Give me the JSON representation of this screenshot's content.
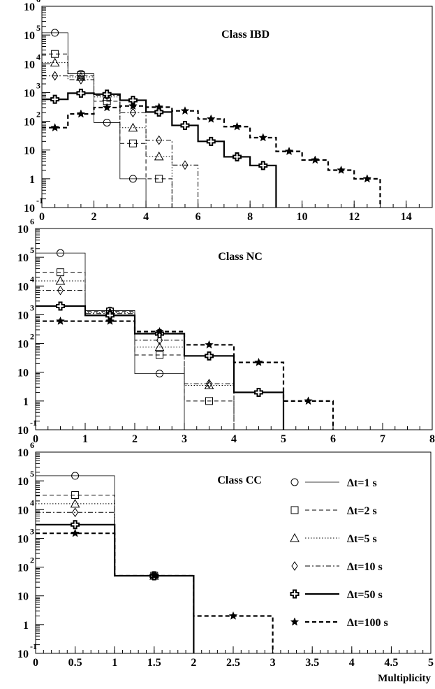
{
  "chart_data": [
    {
      "type": "histogram",
      "title": "Class IBD",
      "xlim": [
        0,
        15
      ],
      "ylim": [
        0.1,
        1000000
      ],
      "yscale": "log",
      "xticks": [
        "0",
        "2",
        "4",
        "6",
        "8",
        "10",
        "12",
        "14"
      ],
      "yticks": [
        {
          "base": "10",
          "exp": "-1"
        },
        {
          "base": "1",
          "exp": ""
        },
        {
          "base": "10",
          "exp": ""
        },
        {
          "base": "10",
          "exp": "2"
        },
        {
          "base": "10",
          "exp": "3"
        },
        {
          "base": "10",
          "exp": "4"
        },
        {
          "base": "10",
          "exp": "5"
        },
        {
          "base": "10",
          "exp": "6"
        }
      ],
      "series": [
        {
          "name": "Δt=1 s",
          "bin_width": 1,
          "values": [
            120000,
            4500,
            90,
            1
          ]
        },
        {
          "name": "Δt=2 s",
          "bin_width": 1,
          "values": [
            22000,
            4000,
            500,
            17,
            1
          ]
        },
        {
          "name": "Δt=5 s",
          "bin_width": 1,
          "values": [
            11000,
            3500,
            700,
            60,
            6
          ]
        },
        {
          "name": "Δt=10 s",
          "bin_width": 1,
          "values": [
            3800,
            2800,
            800,
            200,
            22,
            3
          ]
        },
        {
          "name": "Δt=50 s",
          "bin_width": 1,
          "values": [
            580,
            950,
            880,
            540,
            210,
            72,
            20,
            5.8,
            2.9
          ]
        },
        {
          "name": "Δt=100 s",
          "bin_width": 1,
          "values": [
            60,
            180,
            300,
            340,
            310,
            230,
            120,
            65,
            27,
            9,
            4.5,
            2,
            1
          ]
        }
      ]
    },
    {
      "type": "histogram",
      "title": "Class NC",
      "xlim": [
        0,
        8
      ],
      "ylim": [
        0.1,
        1000000
      ],
      "yscale": "log",
      "xticks": [
        "0",
        "1",
        "2",
        "3",
        "4",
        "5",
        "6",
        "7",
        "8"
      ],
      "yticks": [
        {
          "base": "10",
          "exp": "-1"
        },
        {
          "base": "1",
          "exp": ""
        },
        {
          "base": "10",
          "exp": ""
        },
        {
          "base": "10",
          "exp": "2"
        },
        {
          "base": "10",
          "exp": "3"
        },
        {
          "base": "10",
          "exp": "4"
        },
        {
          "base": "10",
          "exp": "5"
        },
        {
          "base": "10",
          "exp": "6"
        }
      ],
      "series": [
        {
          "name": "Δt=1 s",
          "bin_width": 1,
          "values": [
            140000,
            1400,
            9
          ]
        },
        {
          "name": "Δt=2 s",
          "bin_width": 1,
          "values": [
            30000,
            1300,
            40,
            1
          ]
        },
        {
          "name": "Δt=5 s",
          "bin_width": 1,
          "values": [
            15000,
            1200,
            75,
            3.5
          ]
        },
        {
          "name": "Δt=10 s",
          "bin_width": 1,
          "values": [
            7000,
            1100,
            130,
            4
          ]
        },
        {
          "name": "Δt=50 s",
          "bin_width": 1,
          "values": [
            2000,
            950,
            220,
            37,
            2
          ]
        },
        {
          "name": "Δt=100 s",
          "bin_width": 1,
          "values": [
            600,
            600,
            260,
            90,
            22,
            1
          ]
        }
      ]
    },
    {
      "type": "histogram",
      "title": "Class CC",
      "xlim": [
        0,
        5
      ],
      "ylim": [
        0.1,
        1000000
      ],
      "yscale": "log",
      "xlabel": "Multiplicity",
      "xticks": [
        "0",
        "0.5",
        "1",
        "1.5",
        "2",
        "2.5",
        "3",
        "3.5",
        "4",
        "4.5",
        "5"
      ],
      "yticks": [
        {
          "base": "10",
          "exp": "-1"
        },
        {
          "base": "1",
          "exp": ""
        },
        {
          "base": "10",
          "exp": ""
        },
        {
          "base": "10",
          "exp": "2"
        },
        {
          "base": "10",
          "exp": "3"
        },
        {
          "base": "10",
          "exp": "4"
        },
        {
          "base": "10",
          "exp": "5"
        },
        {
          "base": "10",
          "exp": "6"
        }
      ],
      "series": [
        {
          "name": "Δt=1 s",
          "bin_width": 1,
          "values": [
            150000,
            50
          ]
        },
        {
          "name": "Δt=2 s",
          "bin_width": 1,
          "values": [
            32000,
            50
          ]
        },
        {
          "name": "Δt=5 s",
          "bin_width": 1,
          "values": [
            16000,
            50
          ]
        },
        {
          "name": "Δt=10 s",
          "bin_width": 1,
          "values": [
            8000,
            50
          ]
        },
        {
          "name": "Δt=50 s",
          "bin_width": 1,
          "values": [
            3000,
            50
          ]
        },
        {
          "name": "Δt=100 s",
          "bin_width": 1,
          "values": [
            1500,
            50,
            2
          ]
        }
      ],
      "legend_placement": "right"
    }
  ],
  "legend": {
    "items": [
      {
        "label": "Δt=1 s",
        "marker": "circle",
        "line": "thin-solid"
      },
      {
        "label": "Δt=2 s",
        "marker": "square",
        "line": "dashed"
      },
      {
        "label": "Δt=5 s",
        "marker": "triangle",
        "line": "dotted"
      },
      {
        "label": "Δt=10 s",
        "marker": "diamond",
        "line": "dash-dot"
      },
      {
        "label": "Δt=50 s",
        "marker": "open-cross",
        "line": "thick-solid"
      },
      {
        "label": "Δt=100 s",
        "marker": "star",
        "line": "thick-dashed"
      }
    ]
  }
}
